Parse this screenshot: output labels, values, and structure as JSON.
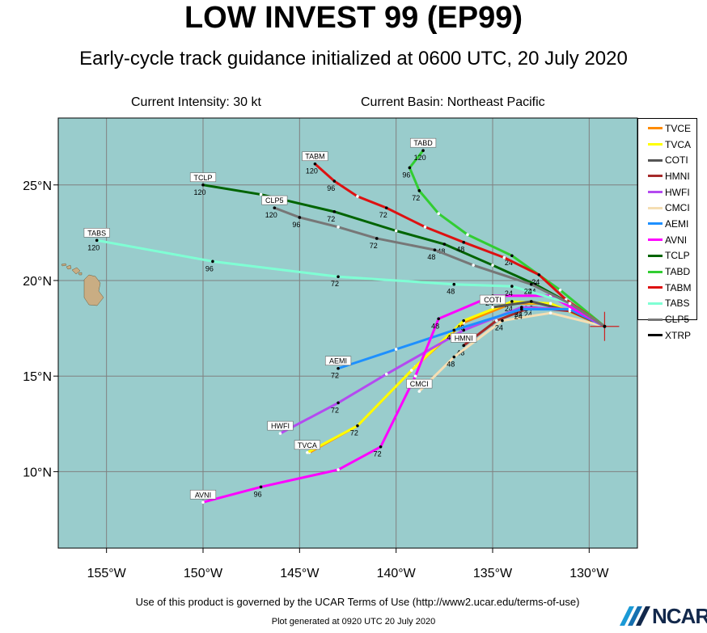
{
  "chart_data": {
    "type": "line",
    "title": "LOW INVEST 99 (EP99)",
    "subtitle": "Early-cycle track guidance initialized at 0600 UTC, 20 July 2020",
    "info": {
      "intensity": "Current Intensity: 30 kt",
      "basin": "Current Basin: Northeast Pacific"
    },
    "xlim": [
      -157.5,
      -127.5
    ],
    "ylim": [
      6.0,
      28.5
    ],
    "xticks": [
      {
        "v": -155,
        "label": "155°W"
      },
      {
        "v": -150,
        "label": "150°W"
      },
      {
        "v": -145,
        "label": "145°W"
      },
      {
        "v": -140,
        "label": "140°W"
      },
      {
        "v": -135,
        "label": "135°W"
      },
      {
        "v": -130,
        "label": "130°W"
      }
    ],
    "yticks": [
      {
        "v": 10,
        "label": "10°N"
      },
      {
        "v": 15,
        "label": "15°N"
      },
      {
        "v": 20,
        "label": "20°N"
      },
      {
        "v": 25,
        "label": "25°N"
      }
    ],
    "grid": true,
    "legend_position": "right",
    "current_position": {
      "lon": -129.2,
      "lat": 17.6
    },
    "series": [
      {
        "name": "TVCE",
        "color": "#ff8c00",
        "label": "",
        "points": [
          [
            -129.2,
            17.6
          ],
          [
            -132.0,
            18.8
          ],
          [
            -134.0,
            18.8
          ],
          [
            -136.5,
            17.8
          ],
          [
            -139.0,
            15.5
          ],
          [
            -142.0,
            12.4
          ],
          [
            -144.5,
            11.0
          ]
        ],
        "times": []
      },
      {
        "name": "TVCA",
        "color": "#ffff00",
        "label": "TVCA",
        "points": [
          [
            -129.2,
            17.6
          ],
          [
            -132.0,
            18.8
          ],
          [
            -134.0,
            18.9
          ],
          [
            -136.5,
            17.9
          ],
          [
            -139.2,
            15.3
          ],
          [
            -142.0,
            12.4
          ],
          [
            -144.6,
            11.0
          ]
        ],
        "times": [
          {
            "i": 2,
            "t": "24"
          },
          {
            "i": 3,
            "t": "48"
          },
          {
            "i": 5,
            "t": "72"
          }
        ]
      },
      {
        "name": "COTI",
        "color": "#555555",
        "label": "COTI",
        "points": [
          [
            -129.2,
            17.6
          ],
          [
            -131.0,
            18.4
          ],
          [
            -133.0,
            18.9
          ],
          [
            -135.0,
            18.6
          ]
        ],
        "times": [
          {
            "i": 2,
            "t": "24"
          }
        ]
      },
      {
        "name": "HMNI",
        "color": "#a52a2a",
        "label": "HMNI",
        "points": [
          [
            -129.2,
            17.6
          ],
          [
            -131.0,
            18.4
          ],
          [
            -133.0,
            18.6
          ],
          [
            -134.8,
            17.9
          ],
          [
            -136.5,
            16.6
          ]
        ],
        "times": [
          {
            "i": 2,
            "t": "24"
          },
          {
            "i": 4,
            "t": "48"
          }
        ]
      },
      {
        "name": "HWFI",
        "color": "#b44af0",
        "label": "HWFI",
        "points": [
          [
            -129.2,
            17.6
          ],
          [
            -131.0,
            18.5
          ],
          [
            -133.5,
            18.6
          ],
          [
            -136.5,
            17.4
          ],
          [
            -140.5,
            15.1
          ],
          [
            -143.0,
            13.6
          ],
          [
            -146.0,
            12.0
          ]
        ],
        "times": [
          {
            "i": 2,
            "t": "24"
          },
          {
            "i": 3,
            "t": "48"
          },
          {
            "i": 5,
            "t": "72"
          }
        ]
      },
      {
        "name": "CMCI",
        "color": "#f5deb3",
        "label": "CMCI",
        "points": [
          [
            -129.2,
            17.6
          ],
          [
            -132.0,
            18.3
          ],
          [
            -134.5,
            17.9
          ],
          [
            -137.0,
            16.0
          ],
          [
            -138.8,
            14.2
          ]
        ],
        "times": [
          {
            "i": 2,
            "t": "24"
          },
          {
            "i": 3,
            "t": "48"
          }
        ]
      },
      {
        "name": "AEMI",
        "color": "#1e90ff",
        "label": "AEMI",
        "points": [
          [
            -129.2,
            17.6
          ],
          [
            -131.0,
            18.5
          ],
          [
            -133.5,
            18.5
          ],
          [
            -137.0,
            17.4
          ],
          [
            -140.0,
            16.4
          ],
          [
            -143.0,
            15.4
          ]
        ],
        "times": [
          {
            "i": 2,
            "t": "24"
          },
          {
            "i": 3,
            "t": "48"
          },
          {
            "i": 5,
            "t": "72"
          }
        ]
      },
      {
        "name": "AVNI",
        "color": "#ff00ff",
        "label": "AVNI",
        "points": [
          [
            -129.2,
            17.6
          ],
          [
            -132.0,
            19.2
          ],
          [
            -135.0,
            19.2
          ],
          [
            -137.8,
            18.0
          ],
          [
            -139.0,
            15.0
          ],
          [
            -140.8,
            11.3
          ],
          [
            -143.0,
            10.1
          ],
          [
            -147.0,
            9.2
          ],
          [
            -150.0,
            8.4
          ]
        ],
        "times": [
          {
            "i": 2,
            "t": "24"
          },
          {
            "i": 3,
            "t": "48"
          },
          {
            "i": 5,
            "t": "72"
          },
          {
            "i": 7,
            "t": "96"
          }
        ]
      },
      {
        "name": "TCLP",
        "color": "#006400",
        "label": "TCLP",
        "points": [
          [
            -129.2,
            17.6
          ],
          [
            -131.0,
            18.8
          ],
          [
            -132.8,
            19.8
          ],
          [
            -135.0,
            20.8
          ],
          [
            -137.5,
            21.9
          ],
          [
            -140.0,
            22.6
          ],
          [
            -143.2,
            23.6
          ],
          [
            -147.0,
            24.5
          ],
          [
            -150.0,
            25.0
          ]
        ],
        "times": [
          {
            "i": 2,
            "t": "24"
          },
          {
            "i": 4,
            "t": "48"
          },
          {
            "i": 6,
            "t": "72"
          },
          {
            "i": 8,
            "t": "120"
          }
        ]
      },
      {
        "name": "TABD",
        "color": "#32cd32",
        "label": "TABD",
        "points": [
          [
            -129.2,
            17.6
          ],
          [
            -131.5,
            19.5
          ],
          [
            -134.0,
            21.3
          ],
          [
            -136.3,
            22.4
          ],
          [
            -137.8,
            23.5
          ],
          [
            -138.8,
            24.7
          ],
          [
            -139.3,
            25.9
          ],
          [
            -138.6,
            26.8
          ]
        ],
        "times": [
          {
            "i": 2,
            "t": "24"
          },
          {
            "i": 5,
            "t": "72"
          },
          {
            "i": 6,
            "t": "96"
          },
          {
            "i": 7,
            "t": "120"
          }
        ]
      },
      {
        "name": "TABM",
        "color": "#dd1111",
        "label": "TABM",
        "points": [
          [
            -129.2,
            17.6
          ],
          [
            -131.2,
            19.0
          ],
          [
            -132.6,
            20.3
          ],
          [
            -134.4,
            21.2
          ],
          [
            -136.5,
            22.0
          ],
          [
            -138.5,
            22.8
          ],
          [
            -140.5,
            23.8
          ],
          [
            -142.0,
            24.4
          ],
          [
            -143.2,
            25.2
          ],
          [
            -144.2,
            26.1
          ]
        ],
        "times": [
          {
            "i": 2,
            "t": "24"
          },
          {
            "i": 4,
            "t": "48"
          },
          {
            "i": 6,
            "t": "72"
          },
          {
            "i": 8,
            "t": "96"
          },
          {
            "i": 9,
            "t": "120"
          }
        ]
      },
      {
        "name": "TABS",
        "color": "#7fffd4",
        "label": "TABS",
        "points": [
          [
            -129.2,
            17.6
          ],
          [
            -131.0,
            18.8
          ],
          [
            -134.0,
            19.7
          ],
          [
            -137.0,
            19.8
          ],
          [
            -143.0,
            20.2
          ],
          [
            -149.5,
            21.0
          ],
          [
            -155.5,
            22.1
          ]
        ],
        "times": [
          {
            "i": 2,
            "t": "24"
          },
          {
            "i": 3,
            "t": "48"
          },
          {
            "i": 4,
            "t": "72"
          },
          {
            "i": 5,
            "t": "96"
          },
          {
            "i": 6,
            "t": "120"
          }
        ]
      },
      {
        "name": "CLP5",
        "color": "#777777",
        "label": "CLP5",
        "points": [
          [
            -129.2,
            17.6
          ],
          [
            -131.0,
            18.8
          ],
          [
            -133.0,
            19.8
          ],
          [
            -136.0,
            20.8
          ],
          [
            -138.0,
            21.6
          ],
          [
            -141.0,
            22.2
          ],
          [
            -143.0,
            22.8
          ],
          [
            -145.0,
            23.3
          ],
          [
            -146.3,
            23.8
          ]
        ],
        "times": [
          {
            "i": 2,
            "t": "24"
          },
          {
            "i": 4,
            "t": "48"
          },
          {
            "i": 5,
            "t": "72"
          },
          {
            "i": 7,
            "t": "96"
          },
          {
            "i": 8,
            "t": "120"
          }
        ]
      },
      {
        "name": "XTRP",
        "color": "#000000",
        "label": "",
        "points": [],
        "times": []
      }
    ]
  },
  "footer": {
    "terms": "Use of this product is governed by the UCAR Terms of Use (http://www2.ucar.edu/terms-of-use)",
    "generated": "Plot generated at 0920 UTC   20 July 2020",
    "logo": "NCAR"
  }
}
